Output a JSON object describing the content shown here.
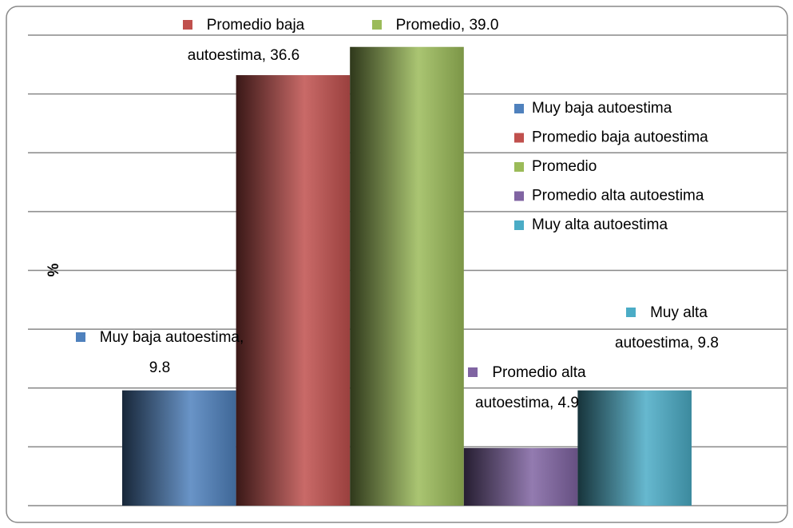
{
  "chart_data": {
    "type": "bar",
    "y_label": "%",
    "categories": [
      "Muy baja autoestima",
      "Promedio baja autoestima",
      "Promedio",
      "Promedio alta autoestima",
      "Muy  alta  autoestima"
    ],
    "values": [
      9.8,
      36.6,
      39.0,
      4.9,
      9.8
    ],
    "value_labels": [
      "9.8",
      "36.6",
      "39.0",
      "4.9",
      "9.8"
    ],
    "colors": [
      "#4f81bd",
      "#c0504d",
      "#9bbb59",
      "#8064a2",
      "#4bacc6"
    ],
    "ylim": [
      0,
      40
    ],
    "yticks": [
      0,
      5,
      10,
      15,
      20,
      25,
      30,
      35,
      40
    ],
    "grid": true,
    "legend": "right"
  }
}
